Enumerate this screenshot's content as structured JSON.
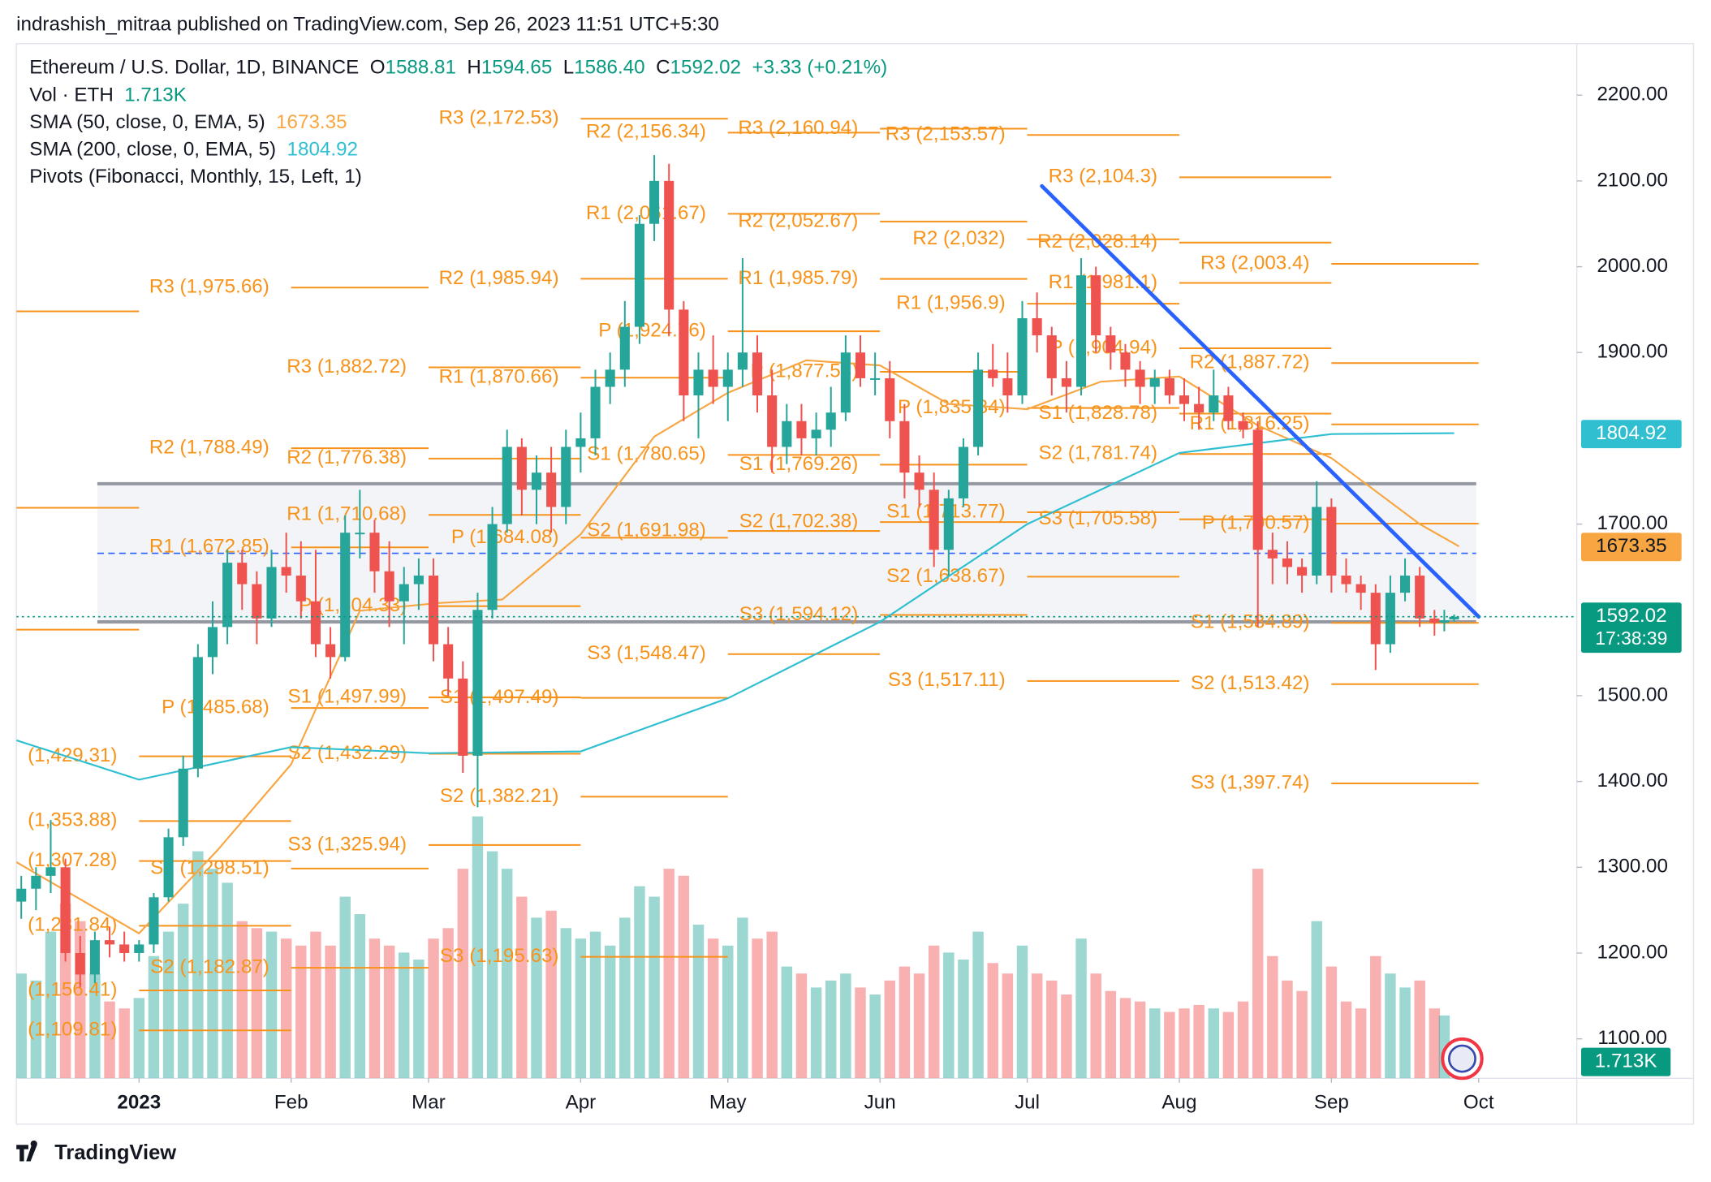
{
  "header": {
    "byline": "indrashish_mitraa published on TradingView.com, Sep 26, 2023 11:51 UTC+5:30",
    "symbol": "Ethereum / U.S. Dollar, 1D, BINANCE",
    "ohlc": [
      {
        "key": "O",
        "value": "1588.81"
      },
      {
        "key": "H",
        "value": "1594.65"
      },
      {
        "key": "L",
        "value": "1586.40"
      },
      {
        "key": "C",
        "value": "1592.02"
      }
    ],
    "change": "+3.33 (+0.21%)",
    "volume": {
      "name": "Vol · ETH",
      "value": "1.713K"
    },
    "indicators": [
      {
        "name": "SMA (50, close, 0, EMA, 5)",
        "value": "1673.35"
      },
      {
        "name": "SMA (200, close, 0, EMA, 5)",
        "value": "1804.92"
      },
      {
        "name": "Pivots (Fibonacci, Monthly, 15, Left, 1)"
      }
    ]
  },
  "footer": "TradingView",
  "chart_data": {
    "type": "candlestick",
    "xlim": [
      -25,
      293
    ],
    "ylim": [
      1054,
      2260
    ],
    "xticks": [
      {
        "value": 0,
        "label": "2023"
      },
      {
        "value": 31,
        "label": "Feb"
      },
      {
        "value": 59,
        "label": "Mar"
      },
      {
        "value": 90,
        "label": "Apr"
      },
      {
        "value": 120,
        "label": "May"
      },
      {
        "value": 151,
        "label": "Jun"
      },
      {
        "value": 181,
        "label": "Jul"
      },
      {
        "value": 212,
        "label": "Aug"
      },
      {
        "value": 243,
        "label": "Sep"
      },
      {
        "value": 273,
        "label": "Oct"
      }
    ],
    "yticks": [
      {
        "value": 2200,
        "label": "2200.00"
      },
      {
        "value": 2100,
        "label": "2100.00"
      },
      {
        "value": 2000,
        "label": "2000.00"
      },
      {
        "value": 1900,
        "label": "1900.00"
      },
      {
        "value": 1700,
        "label": "1700.00"
      },
      {
        "value": 1500,
        "label": "1500.00"
      },
      {
        "value": 1400,
        "label": "1400.00"
      },
      {
        "value": 1300,
        "label": "1300.00"
      },
      {
        "value": 1200,
        "label": "1200.00"
      },
      {
        "value": 1100,
        "label": "1100.00"
      }
    ],
    "up_color": "#26a69a",
    "down_color": "#ef5350",
    "x": [
      -24,
      -21,
      -18,
      -15,
      -12,
      -9,
      -6,
      -3,
      0,
      3,
      6,
      9,
      12,
      15,
      18,
      21,
      24,
      27,
      30,
      33,
      36,
      39,
      42,
      45,
      48,
      51,
      54,
      57,
      60,
      63,
      66,
      69,
      72,
      75,
      78,
      81,
      84,
      87,
      90,
      93,
      96,
      99,
      102,
      105,
      108,
      111,
      114,
      117,
      120,
      123,
      126,
      129,
      132,
      135,
      138,
      141,
      144,
      147,
      150,
      153,
      156,
      159,
      162,
      165,
      168,
      171,
      174,
      177,
      180,
      183,
      186,
      189,
      192,
      195,
      198,
      201,
      204,
      207,
      210,
      213,
      216,
      219,
      222,
      225,
      228,
      231,
      234,
      237,
      240,
      243,
      246,
      249,
      252,
      255,
      258,
      261,
      264,
      266,
      268
    ],
    "open": [
      1260,
      1275,
      1290,
      1300,
      1200,
      1175,
      1215,
      1210,
      1200,
      1210,
      1265,
      1335,
      1415,
      1545,
      1580,
      1655,
      1630,
      1590,
      1650,
      1640,
      1610,
      1560,
      1545,
      1690,
      1690,
      1645,
      1610,
      1630,
      1640,
      1560,
      1520,
      1430,
      1600,
      1700,
      1790,
      1740,
      1760,
      1720,
      1790,
      1800,
      1860,
      1880,
      1930,
      2050,
      2100,
      1950,
      1850,
      1880,
      1860,
      1880,
      1900,
      1850,
      1790,
      1820,
      1800,
      1810,
      1830,
      1900,
      1870,
      1870,
      1820,
      1760,
      1740,
      1670,
      1730,
      1790,
      1880,
      1870,
      1850,
      1940,
      1920,
      1870,
      1860,
      1990,
      1920,
      1900,
      1880,
      1860,
      1870,
      1850,
      1840,
      1830,
      1850,
      1820,
      1810,
      1670,
      1660,
      1650,
      1640,
      1720,
      1640,
      1630,
      1620,
      1560,
      1620,
      1640,
      1590,
      1585,
      1588.81
    ],
    "high": [
      1290,
      1300,
      1355,
      1310,
      1220,
      1225,
      1230,
      1225,
      1215,
      1270,
      1345,
      1430,
      1560,
      1610,
      1670,
      1670,
      1645,
      1670,
      1690,
      1680,
      1670,
      1580,
      1710,
      1740,
      1705,
      1680,
      1650,
      1660,
      1660,
      1580,
      1540,
      1620,
      1720,
      1810,
      1800,
      1780,
      1790,
      1810,
      1830,
      1880,
      1900,
      1960,
      2060,
      2130,
      2120,
      1960,
      1900,
      1920,
      1900,
      2010,
      1920,
      1880,
      1840,
      1840,
      1830,
      1860,
      1920,
      1920,
      1900,
      1890,
      1840,
      1780,
      1760,
      1740,
      1800,
      1900,
      1910,
      1900,
      1960,
      1970,
      1930,
      1890,
      2010,
      2000,
      1930,
      1910,
      1890,
      1880,
      1880,
      1870,
      1860,
      1880,
      1860,
      1830,
      1820,
      1690,
      1680,
      1660,
      1750,
      1730,
      1660,
      1640,
      1630,
      1640,
      1660,
      1650,
      1600,
      1600,
      1594.65
    ],
    "low": [
      1240,
      1250,
      1270,
      1190,
      1160,
      1165,
      1195,
      1190,
      1190,
      1200,
      1260,
      1325,
      1405,
      1525,
      1560,
      1600,
      1560,
      1580,
      1620,
      1590,
      1545,
      1520,
      1540,
      1660,
      1620,
      1580,
      1560,
      1600,
      1540,
      1500,
      1410,
      1370,
      1590,
      1690,
      1710,
      1700,
      1690,
      1700,
      1760,
      1780,
      1840,
      1860,
      1910,
      2030,
      1920,
      1820,
      1800,
      1840,
      1820,
      1860,
      1830,
      1760,
      1770,
      1780,
      1780,
      1790,
      1820,
      1860,
      1850,
      1800,
      1730,
      1720,
      1650,
      1640,
      1720,
      1780,
      1860,
      1830,
      1840,
      1900,
      1850,
      1830,
      1850,
      1900,
      1880,
      1860,
      1840,
      1840,
      1840,
      1820,
      1810,
      1820,
      1810,
      1800,
      1580,
      1630,
      1630,
      1620,
      1630,
      1620,
      1620,
      1600,
      1530,
      1550,
      1610,
      1580,
      1570,
      1575,
      1586.4
    ],
    "close": [
      1275,
      1290,
      1300,
      1200,
      1175,
      1215,
      1210,
      1200,
      1210,
      1265,
      1335,
      1415,
      1545,
      1580,
      1655,
      1630,
      1590,
      1650,
      1640,
      1610,
      1560,
      1545,
      1690,
      1690,
      1645,
      1610,
      1630,
      1640,
      1560,
      1520,
      1430,
      1600,
      1700,
      1790,
      1740,
      1760,
      1720,
      1790,
      1800,
      1860,
      1880,
      1930,
      2050,
      2100,
      1950,
      1850,
      1880,
      1860,
      1880,
      1900,
      1850,
      1790,
      1820,
      1800,
      1810,
      1830,
      1900,
      1870,
      1870,
      1820,
      1760,
      1740,
      1670,
      1730,
      1790,
      1880,
      1870,
      1850,
      1940,
      1920,
      1870,
      1860,
      1990,
      1920,
      1900,
      1880,
      1860,
      1870,
      1850,
      1840,
      1830,
      1850,
      1820,
      1810,
      1670,
      1660,
      1650,
      1640,
      1720,
      1640,
      1630,
      1620,
      1560,
      1620,
      1640,
      1590,
      1585,
      1588,
      1592.02
    ],
    "volume": [
      300,
      280,
      420,
      500,
      450,
      300,
      220,
      200,
      230,
      350,
      420,
      500,
      650,
      600,
      560,
      450,
      430,
      420,
      400,
      380,
      420,
      380,
      520,
      470,
      400,
      380,
      360,
      340,
      400,
      430,
      600,
      750,
      650,
      600,
      520,
      460,
      480,
      430,
      400,
      420,
      380,
      460,
      550,
      520,
      600,
      580,
      440,
      400,
      380,
      460,
      400,
      420,
      320,
      300,
      260,
      280,
      300,
      260,
      240,
      280,
      320,
      300,
      380,
      360,
      340,
      420,
      330,
      300,
      380,
      300,
      280,
      240,
      400,
      300,
      250,
      230,
      220,
      200,
      190,
      200,
      210,
      200,
      190,
      220,
      600,
      350,
      280,
      250,
      450,
      320,
      220,
      200,
      350,
      300,
      260,
      280,
      200,
      180,
      1.713
    ],
    "lines": [
      {
        "color": "#f7a642",
        "x": [
          -25,
          0,
          16,
          31,
          45,
          61,
          74,
          90,
          105,
          120,
          136,
          151,
          165,
          181,
          196,
          212,
          228,
          243,
          261,
          269
        ],
        "values": [
          1306,
          1223,
          1320,
          1420,
          1599,
          1608,
          1612,
          1688,
          1802,
          1853,
          1891,
          1885,
          1840,
          1834,
          1866,
          1872,
          1815,
          1777,
          1700,
          1674
        ]
      },
      {
        "color": "#2fbfd0",
        "x": [
          -25,
          0,
          31,
          59,
          90,
          120,
          151,
          181,
          212,
          243,
          268
        ],
        "values": [
          1448,
          1402,
          1440,
          1433,
          1435,
          1497,
          1586,
          1700,
          1783,
          1805,
          1806
        ]
      }
    ],
    "pivot_color": "#f7931a",
    "pivots": [
      {
        "start": -31,
        "end": 0,
        "levels": [
          {
            "value": 1948
          },
          {
            "value": 1719
          },
          {
            "value": 1577
          }
        ]
      },
      {
        "start": 0,
        "end": 31,
        "levels": [
          {
            "label": "(1,429.31)",
            "value": 1429.31
          },
          {
            "label": "(1,353.88)",
            "value": 1353.88
          },
          {
            "label": "(1,307.28)",
            "value": 1307.28
          },
          {
            "label": "(1,231.84)",
            "value": 1231.84
          },
          {
            "label": "(1,156.41)",
            "value": 1156.41
          },
          {
            "label": "(1,109.81)",
            "value": 1109.81
          }
        ]
      },
      {
        "start": 31,
        "end": 59,
        "levels": [
          {
            "label": "R3 (1,975.66)",
            "value": 1975.66
          },
          {
            "label": "R2 (1,788.49)",
            "value": 1788.49
          },
          {
            "label": "R1 (1,672.85)",
            "value": 1672.85
          },
          {
            "label": "P (1,485.68)",
            "value": 1485.68
          },
          {
            "label": "S1 (1,298.51)",
            "value": 1298.51
          },
          {
            "label": "S2 (1,182.87)",
            "value": 1182.87
          }
        ]
      },
      {
        "start": 59,
        "end": 90,
        "levels": [
          {
            "label": "R3 (1,882.72)",
            "value": 1882.72
          },
          {
            "label": "R2 (1,776.38)",
            "value": 1776.38
          },
          {
            "label": "R1 (1,710.68)",
            "value": 1710.68
          },
          {
            "label": "P (1,604.33)",
            "value": 1604.33
          },
          {
            "label": "S1 (1,497.99)",
            "value": 1497.99
          },
          {
            "label": "S2 (1,432.29)",
            "value": 1432.29
          },
          {
            "label": "S3 (1,325.94)",
            "value": 1325.94
          }
        ]
      },
      {
        "start": 90,
        "end": 120,
        "levels": [
          {
            "label": "R3 (2,172.53)",
            "value": 2172.53
          },
          {
            "label": "R2 (1,985.94)",
            "value": 1985.94
          },
          {
            "label": "R1 (1,870.66)",
            "value": 1870.66
          },
          {
            "label": "P (1,684.08)",
            "value": 1684.08
          },
          {
            "label": "S1 (1,497.49)",
            "value": 1497.49
          },
          {
            "label": "S2 (1,382.21)",
            "value": 1382.21
          },
          {
            "label": "S3 (1,195.63)",
            "value": 1195.63
          }
        ]
      },
      {
        "start": 120,
        "end": 151,
        "levels": [
          {
            "label": "R2 (2,156.34)",
            "value": 2156.34
          },
          {
            "label": "R1 (2,061.67)",
            "value": 2061.67
          },
          {
            "label": "P (1,924.76)",
            "value": 1924.76
          },
          {
            "label": "S1 (1,780.65)",
            "value": 1780.65
          },
          {
            "label": "S2 (1,691.98)",
            "value": 1691.98
          },
          {
            "label": "S3 (1,548.47)",
            "value": 1548.47
          }
        ]
      },
      {
        "start": 151,
        "end": 181,
        "levels": [
          {
            "label": "R3 (2,160.94)",
            "value": 2160.94
          },
          {
            "label": "R2 (2,052.67)",
            "value": 2052.67
          },
          {
            "label": "R1 (1,985.79)",
            "value": 1985.79
          },
          {
            "label": "P (1,877.53)",
            "value": 1877.53
          },
          {
            "label": "S1 (1,769.26)",
            "value": 1769.26
          },
          {
            "label": "S2 (1,702.38)",
            "value": 1702.38
          },
          {
            "label": "S3 (1,594.12)",
            "value": 1594.12
          }
        ]
      },
      {
        "start": 181,
        "end": 212,
        "levels": [
          {
            "label": "R3 (2,153.57)",
            "value": 2153.57
          },
          {
            "label": "R2 (2,032)",
            "value": 2032
          },
          {
            "label": "R1 (1,956.9)",
            "value": 1956.9
          },
          {
            "label": "P (1,835.34)",
            "value": 1835.34
          },
          {
            "label": "S1 (1,713.77)",
            "value": 1713.77
          },
          {
            "label": "S2 (1,638.67)",
            "value": 1638.67
          },
          {
            "label": "S3 (1,517.11)",
            "value": 1517.11
          }
        ]
      },
      {
        "start": 212,
        "end": 243,
        "levels": [
          {
            "label": "R3 (2,104.3)",
            "value": 2104.3
          },
          {
            "label": "R2 (2,028.14)",
            "value": 2028.14
          },
          {
            "label": "R1 (1,981.1)",
            "value": 1981.1
          },
          {
            "label": "P (1,904.94)",
            "value": 1904.94
          },
          {
            "label": "S1 (1,828.78)",
            "value": 1828.78
          },
          {
            "label": "S2 (1,781.74)",
            "value": 1781.74
          },
          {
            "label": "S3 (1,705.58)",
            "value": 1705.58
          }
        ]
      },
      {
        "start": 243,
        "end": 273,
        "levels": [
          {
            "label": "R3 (2,003.4)",
            "value": 2003.4
          },
          {
            "label": "R2 (1,887.72)",
            "value": 1887.72
          },
          {
            "label": "R1 (1,816.25)",
            "value": 1816.25
          },
          {
            "label": "P (1,700.57)",
            "value": 1700.57
          },
          {
            "label": "S1 (1,584.89)",
            "value": 1584.89
          },
          {
            "label": "S2 (1,513.42)",
            "value": 1513.42
          },
          {
            "label": "S3 (1,397.74)",
            "value": 1397.74
          }
        ]
      }
    ],
    "range_box": {
      "start": -8.5,
      "end": 272.5,
      "top": 1747,
      "bottom": 1586,
      "mid": 1666
    },
    "trendline": {
      "color": "#2962ff",
      "x": [
        184,
        273
      ],
      "values": [
        2094,
        1592
      ]
    },
    "price_tags": [
      {
        "value": 1804.92,
        "color": "#2fbfd0"
      },
      {
        "value": 1673.35,
        "color": "#f7a642"
      },
      {
        "value": 1592.02,
        "color": "#089981",
        "countdown": "17:38:39"
      }
    ],
    "volume_tag": {
      "label": "1.713K",
      "color": "#089981"
    }
  }
}
